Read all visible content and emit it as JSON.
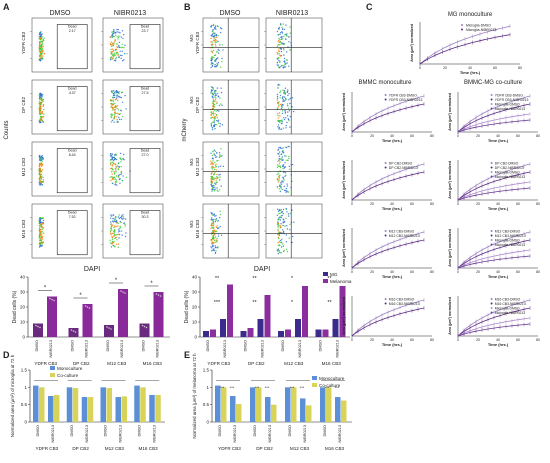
{
  "panel_letters": [
    "A",
    "B",
    "C",
    "D",
    "E"
  ],
  "panel_a": {
    "col_headers": [
      "DMSO",
      "NIBR0213"
    ],
    "row_labels": [
      "YDFR CB3",
      "DP CB2",
      "M12 CB3",
      "M16 CB3"
    ],
    "gate_label": "Dead",
    "gate_values": [
      [
        "2.17",
        "23.7"
      ],
      [
        "4.37",
        "27.5"
      ],
      [
        "8.44",
        "27.0"
      ],
      [
        "7.52",
        "30.3"
      ]
    ],
    "y_title": "Counts",
    "x_title": "DAPI"
  },
  "panel_b": {
    "col_headers": [
      "DMSO",
      "NIBR0213"
    ],
    "row_labels": [
      "YDFR CB3",
      "DP CB2",
      "M12 CB3",
      "M16 CB3"
    ],
    "row_prefix": "MG",
    "y_title": "mCherry",
    "x_title": "DAPI"
  },
  "chart_data": [
    {
      "id": "A-bottom",
      "type": "bar",
      "ylabel": "Dead cells (%)",
      "ylim": [
        0,
        40
      ],
      "yticks": [
        0,
        10,
        20,
        30,
        40
      ],
      "groups": [
        "YDFR CB3",
        "DP CB2",
        "M12 CB3",
        "M16 CB3"
      ],
      "bar_labels": [
        "DMSO",
        "NIBR0213"
      ],
      "values": [
        [
          9,
          27
        ],
        [
          6,
          22
        ],
        [
          8,
          32
        ],
        [
          9,
          30
        ]
      ],
      "significance": [
        "*",
        "*",
        "*",
        "*"
      ]
    },
    {
      "id": "B-bottom",
      "type": "bar",
      "ylabel": "Dead cells (%)",
      "ylim": [
        0,
        40
      ],
      "yticks": [
        0,
        10,
        20,
        30,
        40
      ],
      "groups": [
        "YDFR CB3",
        "DP CB2",
        "M12 CB3",
        "M16 CB3"
      ],
      "bar_labels": [
        "DMSO",
        "NIBR0213"
      ],
      "legend": [
        "MG",
        "Melanoma"
      ],
      "series": [
        {
          "name": "MG",
          "values": [
            [
              4,
              12
            ],
            [
              4,
              12
            ],
            [
              4,
              12
            ],
            [
              5,
              12
            ]
          ]
        },
        {
          "name": "Melanoma",
          "values": [
            [
              5,
              35
            ],
            [
              6,
              28
            ],
            [
              5,
              34
            ],
            [
              5,
              34
            ]
          ]
        }
      ],
      "significance": [
        "***",
        "**",
        "**",
        "**",
        "*",
        "*",
        "**",
        "**"
      ]
    },
    {
      "id": "C-growth",
      "type": "line",
      "titles": [
        "MG monoculture",
        "BMMC monoculture",
        "BMMC-MG  co-culture"
      ],
      "ylabel": "Area (µm²) normalized",
      "xlabel": "Time (hrs.)",
      "xlim": [
        0,
        72
      ],
      "xticks": [
        0,
        20,
        40,
        60,
        80
      ],
      "legend_top": [
        "Microglia-DMSO",
        "Microglia-NIBR0213"
      ],
      "legend_rows": [
        [
          "YDFR CB3-DMSO",
          "YDFR CB3-NIBR0213",
          "Microglia-DMSO",
          "Microglia-NIBR0213"
        ],
        [
          "DP CB2-DMSO",
          "DP CB2-NIBR0213",
          "Microglia-DMSO",
          "Microglia-NIBR0213"
        ],
        [
          "M12 CB3-DMSO",
          "M12 CB3-NIBR0213",
          "Microglia-DMSO",
          "Microglia-NIBR0213"
        ],
        [
          "M16 CB3-DMSO",
          "M16 CB3-NIBR0213",
          "Microglia-DMSO",
          "Microglia-NIBR0213"
        ]
      ]
    },
    {
      "id": "D-bottom",
      "type": "bar",
      "ylabel": "Normalized area (µm²) of microglia at 72 h",
      "ylim": [
        0,
        1.5
      ],
      "yticks": [
        0.0,
        0.5,
        1.0,
        1.5
      ],
      "groups": [
        "YDFR CB3",
        "DP CB2",
        "M12 CB3",
        "M16 CB3"
      ],
      "bar_labels": [
        "DMSO",
        "NIBR0213"
      ],
      "legend": [
        "Monoculture",
        "Co-culture"
      ],
      "series": [
        {
          "name": "Monoculture",
          "values": [
            [
              1.05,
              0.75
            ],
            [
              1.0,
              0.72
            ],
            [
              1.0,
              0.72
            ],
            [
              1.05,
              0.78
            ]
          ]
        },
        {
          "name": "Co-culture",
          "values": [
            [
              1.0,
              0.78
            ],
            [
              0.98,
              0.72
            ],
            [
              0.98,
              0.74
            ],
            [
              1.0,
              0.78
            ]
          ]
        }
      ]
    },
    {
      "id": "E-bottom",
      "type": "bar",
      "ylabel": "Normalized area (µm²) of melanoma at 72 h",
      "ylim": [
        0,
        1.5
      ],
      "yticks": [
        0.0,
        0.5,
        1.0,
        1.5
      ],
      "groups": [
        "YDFR CB3",
        "DP CB2",
        "M12 CB3",
        "M16 CB3"
      ],
      "bar_labels": [
        "DMSO",
        "NIBR0213"
      ],
      "legend": [
        "Monoculture",
        "Co-culture"
      ],
      "series": [
        {
          "name": "Monoculture",
          "values": [
            [
              1.05,
              0.75
            ],
            [
              1.0,
              0.72
            ],
            [
              1.0,
              0.68
            ],
            [
              1.0,
              0.72
            ]
          ]
        },
        {
          "name": "Co-culture",
          "values": [
            [
              1.0,
              0.52
            ],
            [
              1.0,
              0.5
            ],
            [
              1.0,
              0.48
            ],
            [
              1.0,
              0.62
            ]
          ]
        }
      ],
      "significance": [
        "***",
        "***",
        "***",
        "***",
        "***",
        "***",
        "***",
        "***"
      ]
    }
  ],
  "colors": {
    "dmso_bar": "#6b2a7f",
    "nibr_bar": "#8a2a9a",
    "mg_bar": "#3b2b8c",
    "melanoma_bar": "#8b2f9f",
    "mono_bar": "#5b8fd6",
    "co_bar": "#d8d45a",
    "line_a": "#9b7fc0",
    "line_b": "#5a2a80",
    "flow_hot": "#ff7a00",
    "flow_warm": "#33cc33",
    "flow_cool": "#2a6fd0"
  }
}
